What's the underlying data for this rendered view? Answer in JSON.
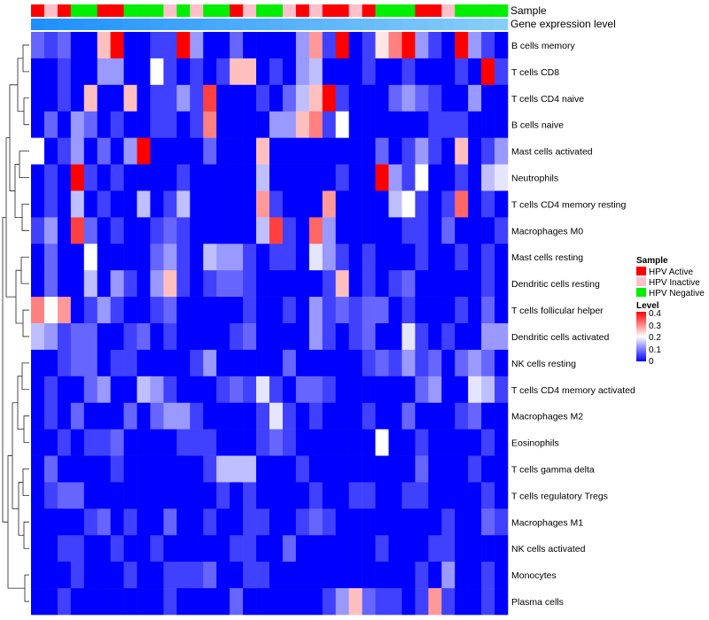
{
  "chart_data": {
    "type": "heatmap",
    "annotation_rows": [
      {
        "label": "Sample"
      },
      {
        "label": "Gene expression level"
      }
    ],
    "rows": [
      "B cells memory",
      "T cells CD8",
      "T cells CD4 naive",
      "B cells naive",
      "Mast cells activated",
      "Neutrophils",
      "T cells CD4 memory resting",
      "Macrophages M0",
      "Mast cells resting",
      "Dendritic cells resting",
      "T cells follicular helper",
      "Dendritic cells activated",
      "NK cells resting",
      "T cells CD4 memory activated",
      "Macrophages M2",
      "Eosinophils",
      "T cells gamma delta",
      "T cells regulatory  Tregs",
      "Macrophages M1",
      "NK cells activated",
      "Monocytes",
      "Plasma cells"
    ],
    "n_columns": 36,
    "sample_groups": [
      "A",
      "I",
      "A",
      "N",
      "N",
      "A",
      "A",
      "N",
      "N",
      "N",
      "I",
      "N",
      "I",
      "N",
      "N",
      "A",
      "I",
      "N",
      "N",
      "I",
      "A",
      "I",
      "A",
      "A",
      "I",
      "A",
      "N",
      "N",
      "N",
      "A",
      "A",
      "I",
      "N",
      "N",
      "N",
      "N"
    ],
    "expression_gradient": [
      "#1e90ff",
      "#87cefa"
    ],
    "values": [
      [
        0.08,
        0.05,
        0.08,
        0.0,
        0.0,
        0.25,
        0.4,
        0.0,
        0.0,
        0.05,
        0.05,
        0.4,
        0.12,
        0.0,
        0.0,
        0.08,
        0.0,
        0.0,
        0.0,
        0.0,
        0.12,
        0.28,
        0.05,
        0.4,
        0.0,
        0.05,
        0.22,
        0.3,
        0.4,
        0.12,
        0.05,
        0.0,
        0.4,
        0.12,
        0.05,
        0.0
      ],
      [
        0.0,
        0.0,
        0.05,
        0.0,
        0.0,
        0.12,
        0.12,
        0.0,
        0.0,
        0.2,
        0.05,
        0.0,
        0.05,
        0.0,
        0.05,
        0.25,
        0.25,
        0.0,
        0.05,
        0.0,
        0.12,
        0.15,
        0.0,
        0.0,
        0.0,
        0.05,
        0.0,
        0.0,
        0.05,
        0.0,
        0.0,
        0.0,
        0.05,
        0.0,
        0.4,
        0.05
      ],
      [
        0.0,
        0.0,
        0.05,
        0.0,
        0.25,
        0.0,
        0.0,
        0.25,
        0.0,
        0.05,
        0.05,
        0.12,
        0.05,
        0.35,
        0.0,
        0.0,
        0.0,
        0.05,
        0.0,
        0.08,
        0.15,
        0.25,
        0.4,
        0.05,
        0.0,
        0.0,
        0.0,
        0.08,
        0.12,
        0.08,
        0.05,
        0.0,
        0.0,
        0.12,
        0.0,
        0.0
      ],
      [
        0.0,
        0.08,
        0.0,
        0.12,
        0.08,
        0.0,
        0.05,
        0.0,
        0.0,
        0.05,
        0.05,
        0.0,
        0.05,
        0.3,
        0.0,
        0.0,
        0.0,
        0.0,
        0.12,
        0.12,
        0.25,
        0.3,
        0.05,
        0.2,
        0.0,
        0.0,
        0.0,
        0.0,
        0.0,
        0.0,
        0.05,
        0.05,
        0.05,
        0.0,
        0.0,
        0.0
      ],
      [
        0.2,
        0.0,
        0.05,
        0.12,
        0.0,
        0.08,
        0.0,
        0.12,
        0.4,
        0.0,
        0.0,
        0.0,
        0.0,
        0.08,
        0.0,
        0.0,
        0.0,
        0.25,
        0.0,
        0.0,
        0.0,
        0.0,
        0.0,
        0.0,
        0.0,
        0.0,
        0.08,
        0.0,
        0.05,
        0.12,
        0.05,
        0.0,
        0.25,
        0.0,
        0.05,
        0.12
      ],
      [
        0.0,
        0.05,
        0.0,
        0.4,
        0.05,
        0.0,
        0.05,
        0.0,
        0.0,
        0.0,
        0.0,
        0.05,
        0.0,
        0.0,
        0.0,
        0.0,
        0.0,
        0.15,
        0.0,
        0.0,
        0.0,
        0.0,
        0.0,
        0.05,
        0.0,
        0.0,
        0.4,
        0.12,
        0.05,
        0.2,
        0.0,
        0.0,
        0.05,
        0.0,
        0.15,
        0.18
      ],
      [
        0.0,
        0.05,
        0.0,
        0.15,
        0.0,
        0.05,
        0.0,
        0.0,
        0.15,
        0.0,
        0.05,
        0.15,
        0.0,
        0.0,
        0.0,
        0.0,
        0.0,
        0.28,
        0.05,
        0.0,
        0.0,
        0.0,
        0.28,
        0.0,
        0.0,
        0.0,
        0.0,
        0.15,
        0.2,
        0.05,
        0.0,
        0.05,
        0.32,
        0.0,
        0.05,
        0.0
      ],
      [
        0.05,
        0.12,
        0.0,
        0.35,
        0.08,
        0.0,
        0.05,
        0.0,
        0.0,
        0.05,
        0.08,
        0.05,
        0.0,
        0.0,
        0.0,
        0.0,
        0.0,
        0.15,
        0.35,
        0.05,
        0.0,
        0.32,
        0.12,
        0.0,
        0.0,
        0.0,
        0.0,
        0.0,
        0.05,
        0.05,
        0.0,
        0.08,
        0.0,
        0.0,
        0.0,
        0.05
      ],
      [
        0.0,
        0.08,
        0.0,
        0.0,
        0.2,
        0.0,
        0.0,
        0.0,
        0.0,
        0.08,
        0.12,
        0.05,
        0.0,
        0.15,
        0.12,
        0.12,
        0.05,
        0.0,
        0.05,
        0.05,
        0.0,
        0.18,
        0.12,
        0.05,
        0.0,
        0.05,
        0.0,
        0.0,
        0.0,
        0.05,
        0.0,
        0.0,
        0.05,
        0.0,
        0.05,
        0.0
      ],
      [
        0.0,
        0.08,
        0.0,
        0.0,
        0.15,
        0.0,
        0.12,
        0.05,
        0.0,
        0.12,
        0.25,
        0.05,
        0.0,
        0.05,
        0.08,
        0.08,
        0.05,
        0.0,
        0.0,
        0.0,
        0.0,
        0.0,
        0.05,
        0.25,
        0.0,
        0.05,
        0.0,
        0.05,
        0.08,
        0.0,
        0.0,
        0.0,
        0.0,
        0.0,
        0.05,
        0.0
      ],
      [
        0.3,
        0.2,
        0.28,
        0.0,
        0.05,
        0.12,
        0.05,
        0.0,
        0.0,
        0.05,
        0.08,
        0.0,
        0.0,
        0.0,
        0.0,
        0.0,
        0.05,
        0.0,
        0.0,
        0.05,
        0.0,
        0.12,
        0.05,
        0.08,
        0.05,
        0.08,
        0.08,
        0.0,
        0.05,
        0.0,
        0.0,
        0.0,
        0.05,
        0.0,
        0.08,
        0.0
      ],
      [
        0.15,
        0.12,
        0.05,
        0.08,
        0.08,
        0.0,
        0.0,
        0.05,
        0.08,
        0.0,
        0.05,
        0.0,
        0.0,
        0.0,
        0.0,
        0.05,
        0.08,
        0.0,
        0.0,
        0.0,
        0.0,
        0.12,
        0.05,
        0.0,
        0.05,
        0.08,
        0.0,
        0.0,
        0.18,
        0.05,
        0.0,
        0.05,
        0.0,
        0.0,
        0.12,
        0.12
      ],
      [
        0.0,
        0.0,
        0.05,
        0.08,
        0.08,
        0.0,
        0.05,
        0.05,
        0.0,
        0.0,
        0.0,
        0.0,
        0.05,
        0.12,
        0.0,
        0.0,
        0.0,
        0.0,
        0.0,
        0.08,
        0.0,
        0.0,
        0.0,
        0.0,
        0.0,
        0.05,
        0.08,
        0.05,
        0.12,
        0.05,
        0.08,
        0.0,
        0.08,
        0.12,
        0.08,
        0.0
      ],
      [
        0.0,
        0.05,
        0.0,
        0.0,
        0.08,
        0.12,
        0.0,
        0.0,
        0.15,
        0.12,
        0.05,
        0.0,
        0.0,
        0.0,
        0.05,
        0.08,
        0.05,
        0.18,
        0.05,
        0.0,
        0.08,
        0.08,
        0.05,
        0.0,
        0.0,
        0.0,
        0.0,
        0.0,
        0.0,
        0.08,
        0.12,
        0.0,
        0.0,
        0.18,
        0.15,
        0.05
      ],
      [
        0.0,
        0.05,
        0.0,
        0.08,
        0.0,
        0.0,
        0.0,
        0.08,
        0.0,
        0.08,
        0.12,
        0.12,
        0.05,
        0.0,
        0.0,
        0.0,
        0.0,
        0.05,
        0.18,
        0.05,
        0.0,
        0.05,
        0.0,
        0.0,
        0.0,
        0.05,
        0.0,
        0.0,
        0.08,
        0.0,
        0.0,
        0.0,
        0.05,
        0.08,
        0.0,
        0.0
      ],
      [
        0.0,
        0.0,
        0.05,
        0.0,
        0.05,
        0.05,
        0.08,
        0.0,
        0.0,
        0.0,
        0.0,
        0.05,
        0.05,
        0.05,
        0.0,
        0.0,
        0.0,
        0.05,
        0.08,
        0.05,
        0.0,
        0.0,
        0.0,
        0.0,
        0.0,
        0.0,
        0.2,
        0.0,
        0.0,
        0.05,
        0.0,
        0.0,
        0.0,
        0.0,
        0.05,
        0.0
      ],
      [
        0.0,
        0.08,
        0.0,
        0.0,
        0.0,
        0.0,
        0.05,
        0.0,
        0.0,
        0.0,
        0.0,
        0.0,
        0.0,
        0.05,
        0.15,
        0.15,
        0.15,
        0.0,
        0.0,
        0.0,
        0.05,
        0.0,
        0.0,
        0.0,
        0.0,
        0.0,
        0.0,
        0.0,
        0.0,
        0.08,
        0.0,
        0.0,
        0.0,
        0.05,
        0.0,
        0.0
      ],
      [
        0.0,
        0.05,
        0.08,
        0.08,
        0.0,
        0.0,
        0.0,
        0.0,
        0.0,
        0.0,
        0.0,
        0.0,
        0.0,
        0.0,
        0.05,
        0.0,
        0.05,
        0.0,
        0.0,
        0.0,
        0.0,
        0.05,
        0.0,
        0.0,
        0.05,
        0.05,
        0.0,
        0.0,
        0.05,
        0.05,
        0.0,
        0.0,
        0.0,
        0.0,
        0.05,
        0.0
      ],
      [
        0.0,
        0.0,
        0.0,
        0.0,
        0.05,
        0.08,
        0.0,
        0.05,
        0.0,
        0.0,
        0.08,
        0.0,
        0.0,
        0.05,
        0.0,
        0.0,
        0.05,
        0.05,
        0.0,
        0.0,
        0.05,
        0.08,
        0.05,
        0.0,
        0.0,
        0.0,
        0.0,
        0.0,
        0.0,
        0.0,
        0.0,
        0.05,
        0.0,
        0.0,
        0.08,
        0.05
      ],
      [
        0.0,
        0.0,
        0.05,
        0.05,
        0.0,
        0.0,
        0.05,
        0.0,
        0.0,
        0.05,
        0.0,
        0.0,
        0.0,
        0.0,
        0.0,
        0.05,
        0.05,
        0.0,
        0.0,
        0.08,
        0.0,
        0.0,
        0.0,
        0.0,
        0.0,
        0.0,
        0.05,
        0.0,
        0.0,
        0.0,
        0.05,
        0.05,
        0.0,
        0.0,
        0.0,
        0.0
      ],
      [
        0.0,
        0.0,
        0.0,
        0.05,
        0.0,
        0.0,
        0.0,
        0.05,
        0.0,
        0.0,
        0.05,
        0.05,
        0.05,
        0.08,
        0.0,
        0.0,
        0.05,
        0.05,
        0.0,
        0.0,
        0.0,
        0.0,
        0.0,
        0.0,
        0.0,
        0.0,
        0.0,
        0.0,
        0.0,
        0.05,
        0.0,
        0.12,
        0.0,
        0.0,
        0.05,
        0.0
      ],
      [
        0.0,
        0.0,
        0.05,
        0.0,
        0.0,
        0.0,
        0.0,
        0.0,
        0.0,
        0.0,
        0.05,
        0.0,
        0.0,
        0.0,
        0.0,
        0.08,
        0.0,
        0.0,
        0.0,
        0.0,
        0.0,
        0.0,
        0.05,
        0.12,
        0.25,
        0.08,
        0.05,
        0.05,
        0.0,
        0.05,
        0.28,
        0.05,
        0.0,
        0.0,
        0.05,
        0.0
      ]
    ],
    "legend": {
      "sample": {
        "title": "Sample",
        "items": [
          {
            "key": "A",
            "label": "HPV Active",
            "color": "#ff0000"
          },
          {
            "key": "I",
            "label": "HPV Inactive",
            "color": "#ffc0cb"
          },
          {
            "key": "N",
            "label": "HPV Negative",
            "color": "#00ee00"
          }
        ]
      },
      "level": {
        "title": "Level",
        "ticks": [
          "0.4",
          "0.3",
          "0.2",
          "0.1",
          "0"
        ],
        "range": [
          0,
          0.4
        ],
        "colors": [
          "#0000ff",
          "#ffffff",
          "#ff0000"
        ]
      }
    }
  }
}
